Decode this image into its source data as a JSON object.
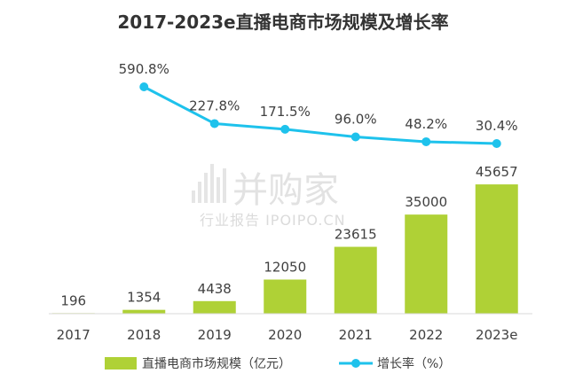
{
  "watermark": {
    "brand": "并购家",
    "sub": "行业报告 IPOIPO.CN"
  },
  "chart_data": {
    "type": "bar",
    "title": "2017-2023e直播电商市场规模及增长率",
    "categories": [
      "2017",
      "2018",
      "2019",
      "2020",
      "2021",
      "2022",
      "2023e"
    ],
    "series": [
      {
        "name": "直播电商市场规模（亿元）",
        "type": "bar",
        "color": "#afd136",
        "values": [
          196,
          1354,
          4438,
          12050,
          23615,
          35000,
          45657
        ]
      },
      {
        "name": "增长率（%）",
        "type": "line",
        "color": "#1ec2ec",
        "x": [
          "2018",
          "2019",
          "2020",
          "2021",
          "2022",
          "2023e"
        ],
        "values": [
          590.8,
          227.8,
          171.5,
          96.0,
          48.2,
          30.4
        ],
        "labels": [
          "590.8%",
          "227.8%",
          "171.5%",
          "96.0%",
          "48.2%",
          "30.4%"
        ]
      }
    ],
    "legend_position": "bottom",
    "grid": false
  }
}
